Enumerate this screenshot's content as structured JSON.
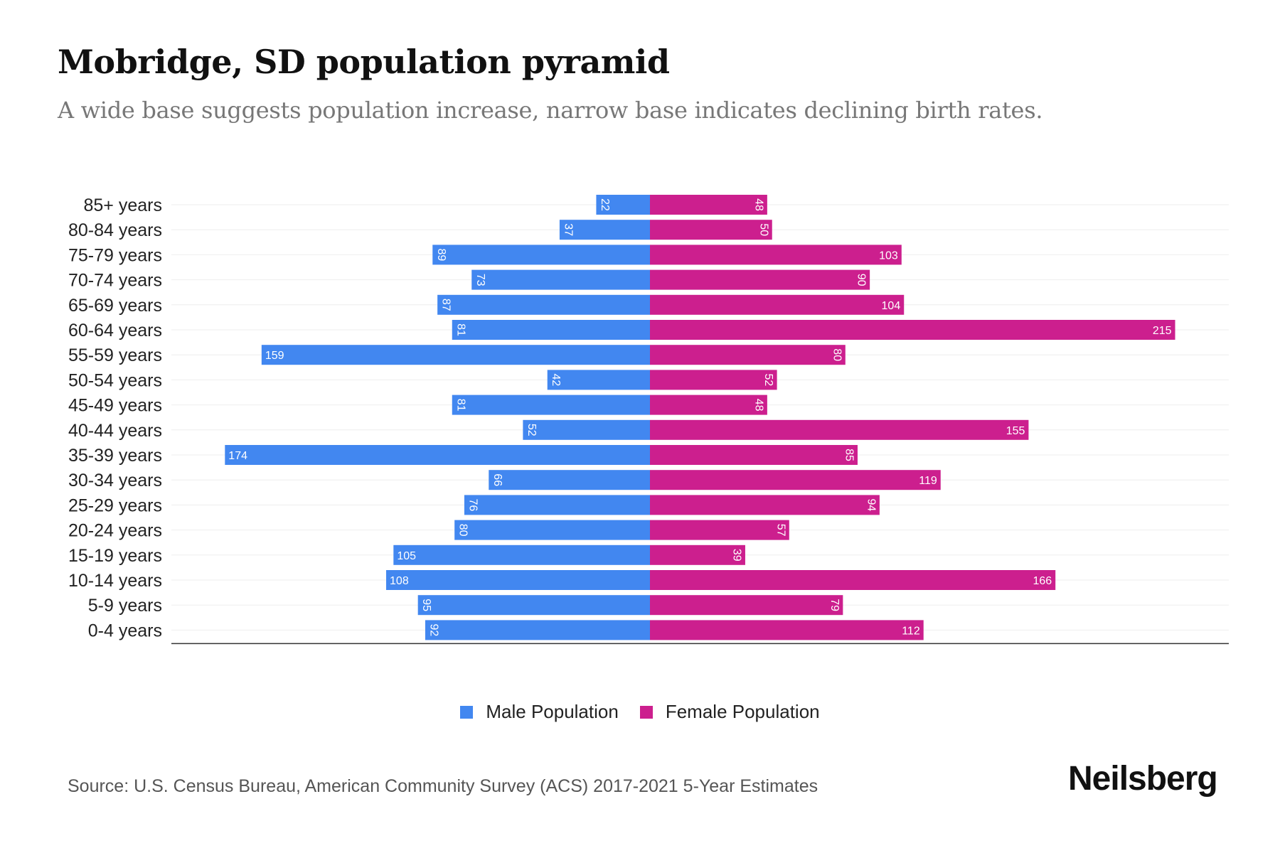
{
  "title": "Mobridge, SD population pyramid",
  "subtitle": "A wide base suggests population increase, narrow base indicates declining birth rates.",
  "source": "Source: U.S. Census Bureau, American Community Survey (ACS) 2017-2021 5-Year Estimates",
  "logo": "Neilsberg",
  "colors": {
    "male": "#4287f0",
    "female": "#cc1f8e"
  },
  "chart_data": {
    "type": "bar",
    "orientation": "horizontal-pyramid",
    "categories": [
      "85+ years",
      "80-84 years",
      "75-79 years",
      "70-74 years",
      "65-69 years",
      "60-64 years",
      "55-59 years",
      "50-54 years",
      "45-49 years",
      "40-44 years",
      "35-39 years",
      "30-34 years",
      "25-29 years",
      "20-24 years",
      "15-19 years",
      "10-14 years",
      "5-9 years",
      "0-4 years"
    ],
    "series": [
      {
        "name": "Male Population",
        "values": [
          22,
          37,
          89,
          73,
          87,
          81,
          159,
          42,
          81,
          52,
          174,
          66,
          76,
          80,
          105,
          108,
          95,
          92
        ]
      },
      {
        "name": "Female Population",
        "values": [
          48,
          50,
          103,
          90,
          104,
          215,
          80,
          52,
          48,
          155,
          85,
          119,
          94,
          57,
          39,
          166,
          79,
          112
        ]
      }
    ],
    "xlim": [
      -195,
      237
    ],
    "legend": "bottom-center",
    "grid": true
  }
}
